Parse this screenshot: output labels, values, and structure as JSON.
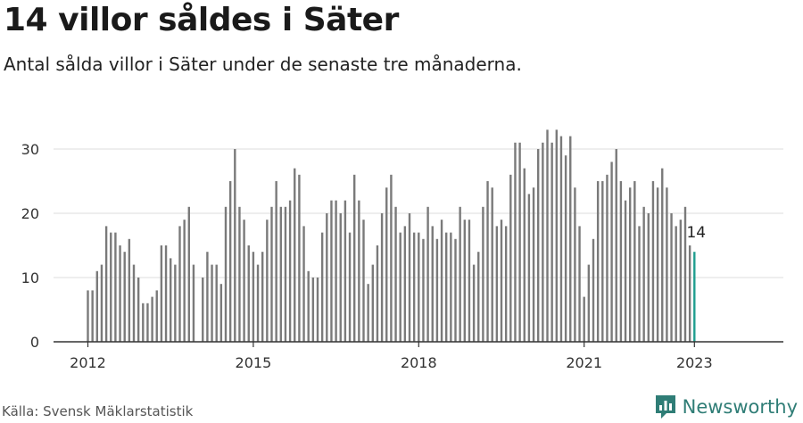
{
  "title": "14 villor såldes i Säter",
  "subtitle": "Antal sålda villor i Säter under de senaste tre månaderna.",
  "source": "Källa: Svensk Mäklarstatistik",
  "brand": {
    "name": "Newsworthy",
    "icon": "newsworthy-logo-icon"
  },
  "colors": {
    "bar": "#7a7a7a",
    "highlight": "#1f9e8f",
    "grid": "#dddddd",
    "axis": "#333333",
    "brand": "#2f7d76"
  },
  "chart_data": {
    "type": "bar",
    "title": "14 villor såldes i Säter",
    "subtitle": "Antal sålda villor i Säter under de senaste tre månaderna.",
    "xlabel": "",
    "ylabel": "",
    "ylim": [
      0,
      35
    ],
    "yticks": [
      0,
      10,
      20,
      30
    ],
    "x_ticks": [
      {
        "label": "2012",
        "index": 0
      },
      {
        "label": "2015",
        "index": 36
      },
      {
        "label": "2018",
        "index": 72
      },
      {
        "label": "2021",
        "index": 108
      },
      {
        "label": "2023",
        "index": 132
      }
    ],
    "grid": true,
    "highlight_index": 132,
    "highlight_label": "14",
    "values": [
      8,
      8,
      11,
      12,
      18,
      17,
      17,
      15,
      14,
      16,
      12,
      10,
      6,
      6,
      7,
      8,
      15,
      15,
      13,
      12,
      18,
      19,
      21,
      12,
      null,
      10,
      14,
      12,
      12,
      9,
      21,
      25,
      30,
      21,
      19,
      15,
      14,
      12,
      14,
      19,
      21,
      25,
      21,
      21,
      22,
      27,
      26,
      18,
      11,
      10,
      10,
      17,
      20,
      22,
      22,
      20,
      22,
      17,
      26,
      22,
      19,
      9,
      12,
      15,
      20,
      24,
      26,
      21,
      17,
      18,
      20,
      17,
      17,
      16,
      21,
      18,
      16,
      19,
      17,
      17,
      16,
      21,
      19,
      19,
      12,
      14,
      21,
      25,
      24,
      18,
      19,
      18,
      26,
      31,
      31,
      27,
      23,
      24,
      30,
      31,
      33,
      31,
      33,
      32,
      29,
      32,
      24,
      18,
      7,
      12,
      16,
      25,
      25,
      26,
      28,
      30,
      25,
      22,
      24,
      25,
      18,
      21,
      20,
      25,
      24,
      27,
      24,
      20,
      18,
      19,
      21,
      15,
      14
    ]
  }
}
